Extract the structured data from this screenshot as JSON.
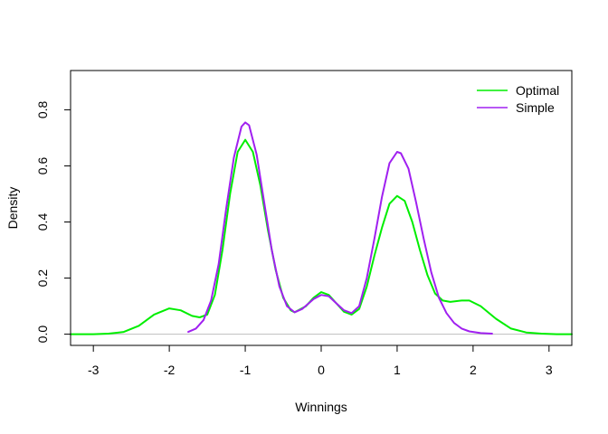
{
  "chart_data": {
    "type": "line",
    "title": "",
    "xlabel": "Winnings",
    "ylabel": "Density",
    "xlim": [
      -3.3,
      3.3
    ],
    "ylim": [
      -0.04,
      0.94
    ],
    "xticks": [
      -3,
      -2,
      -1,
      0,
      1,
      2,
      3
    ],
    "yticks": [
      0.0,
      0.2,
      0.4,
      0.6,
      0.8
    ],
    "baseline": 0,
    "baseline_color": "#bebebe",
    "legend_position": "top-right",
    "series": [
      {
        "name": "Optimal",
        "color": "#00ee00",
        "points": [
          [
            -3.3,
            0.0
          ],
          [
            -3.0,
            0.0
          ],
          [
            -2.8,
            0.002
          ],
          [
            -2.6,
            0.008
          ],
          [
            -2.4,
            0.03
          ],
          [
            -2.2,
            0.07
          ],
          [
            -2.0,
            0.092
          ],
          [
            -1.85,
            0.085
          ],
          [
            -1.7,
            0.065
          ],
          [
            -1.6,
            0.06
          ],
          [
            -1.5,
            0.07
          ],
          [
            -1.4,
            0.14
          ],
          [
            -1.3,
            0.3
          ],
          [
            -1.2,
            0.5
          ],
          [
            -1.1,
            0.65
          ],
          [
            -1.0,
            0.693
          ],
          [
            -0.9,
            0.65
          ],
          [
            -0.8,
            0.53
          ],
          [
            -0.7,
            0.37
          ],
          [
            -0.6,
            0.23
          ],
          [
            -0.5,
            0.13
          ],
          [
            -0.4,
            0.085
          ],
          [
            -0.35,
            0.078
          ],
          [
            -0.2,
            0.1
          ],
          [
            -0.1,
            0.13
          ],
          [
            0.0,
            0.15
          ],
          [
            0.1,
            0.14
          ],
          [
            0.2,
            0.11
          ],
          [
            0.3,
            0.08
          ],
          [
            0.4,
            0.07
          ],
          [
            0.5,
            0.09
          ],
          [
            0.6,
            0.17
          ],
          [
            0.7,
            0.28
          ],
          [
            0.8,
            0.38
          ],
          [
            0.9,
            0.465
          ],
          [
            1.0,
            0.493
          ],
          [
            1.1,
            0.475
          ],
          [
            1.2,
            0.4
          ],
          [
            1.3,
            0.3
          ],
          [
            1.4,
            0.21
          ],
          [
            1.5,
            0.145
          ],
          [
            1.6,
            0.12
          ],
          [
            1.7,
            0.115
          ],
          [
            1.85,
            0.12
          ],
          [
            1.95,
            0.12
          ],
          [
            2.1,
            0.1
          ],
          [
            2.3,
            0.055
          ],
          [
            2.5,
            0.02
          ],
          [
            2.7,
            0.006
          ],
          [
            2.9,
            0.002
          ],
          [
            3.1,
            0.0
          ],
          [
            3.3,
            0.0
          ]
        ]
      },
      {
        "name": "Simple",
        "color": "#a020f0",
        "points": [
          [
            -1.75,
            0.008
          ],
          [
            -1.65,
            0.02
          ],
          [
            -1.55,
            0.05
          ],
          [
            -1.45,
            0.12
          ],
          [
            -1.35,
            0.25
          ],
          [
            -1.25,
            0.45
          ],
          [
            -1.15,
            0.63
          ],
          [
            -1.05,
            0.74
          ],
          [
            -1.0,
            0.755
          ],
          [
            -0.95,
            0.745
          ],
          [
            -0.85,
            0.64
          ],
          [
            -0.75,
            0.47
          ],
          [
            -0.65,
            0.3
          ],
          [
            -0.55,
            0.17
          ],
          [
            -0.45,
            0.1
          ],
          [
            -0.35,
            0.078
          ],
          [
            -0.25,
            0.09
          ],
          [
            -0.1,
            0.125
          ],
          [
            0.0,
            0.14
          ],
          [
            0.1,
            0.135
          ],
          [
            0.2,
            0.11
          ],
          [
            0.3,
            0.085
          ],
          [
            0.4,
            0.075
          ],
          [
            0.5,
            0.1
          ],
          [
            0.6,
            0.2
          ],
          [
            0.7,
            0.34
          ],
          [
            0.8,
            0.49
          ],
          [
            0.9,
            0.61
          ],
          [
            1.0,
            0.65
          ],
          [
            1.05,
            0.645
          ],
          [
            1.15,
            0.59
          ],
          [
            1.25,
            0.47
          ],
          [
            1.35,
            0.34
          ],
          [
            1.45,
            0.22
          ],
          [
            1.55,
            0.13
          ],
          [
            1.65,
            0.075
          ],
          [
            1.75,
            0.04
          ],
          [
            1.85,
            0.02
          ],
          [
            1.95,
            0.01
          ],
          [
            2.1,
            0.004
          ],
          [
            2.25,
            0.002
          ]
        ]
      }
    ]
  }
}
